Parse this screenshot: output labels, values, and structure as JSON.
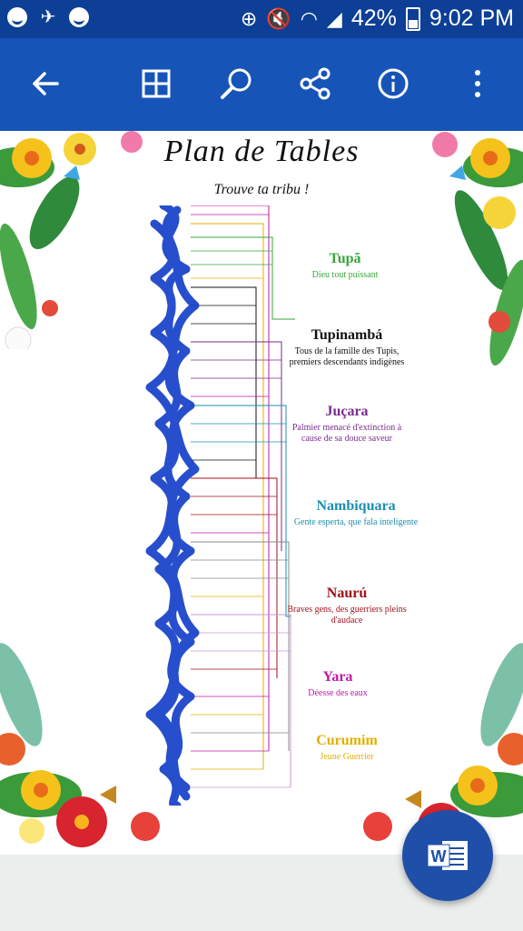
{
  "status_bar": {
    "battery_pct": "42%",
    "time": "9:02 PM"
  },
  "toolbar": {
    "back": "back-arrow-icon",
    "grid": "grid-view-icon",
    "search": "search-icon",
    "share": "share-icon",
    "info": "info-icon",
    "more": "more-vert-icon"
  },
  "document": {
    "title": "Plan de Tables",
    "subtitle": "Trouve ta tribu !",
    "tribes": [
      {
        "name": "Tupã",
        "desc": "Dieu tout puissant",
        "color": "#3aa63a"
      },
      {
        "name": "Tupinambá",
        "desc": "Tous de la famille des Tupis, premiers descendants indigènes",
        "color": "#111111"
      },
      {
        "name": "Juçara",
        "desc": "Palmier menacé d'extinction à cause de sa douce saveur",
        "color": "#7a2b8f"
      },
      {
        "name": "Nambiquara",
        "desc": "Gente esperta, que fala inteligente",
        "color": "#1a8fb0"
      },
      {
        "name": "Naurú",
        "desc": "Braves gens, des guerriers pleins d'audace",
        "color": "#a01018"
      },
      {
        "name": "Yara",
        "desc": "Déesse des eaux",
        "color": "#c018a8"
      },
      {
        "name": "Curumim",
        "desc": "Jeune Guerrier",
        "color": "#e0b000"
      }
    ]
  },
  "fab": {
    "label": "W",
    "icon": "word-app-icon"
  }
}
